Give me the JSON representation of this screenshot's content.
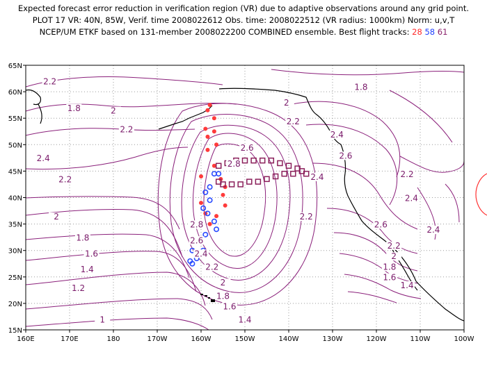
{
  "header": {
    "line1": "Expected forecast error reduction in verification region (VR) due to adaptive observations around any grid point.",
    "line2": "PLOT 17 VR: 40N, 85W, Verif. time 2008022612 Obs. time: 2008022512 (VR radius: 1000km) Norm: u,v,T",
    "line3_prefix": "NCEP/UM ETKF based on 131-member 2008022200 COMBINED ensemble.  Best flight tracks:",
    "track_a": "28",
    "track_b": "58",
    "track_c": "61"
  },
  "colors": {
    "contour": "#8a1f7a",
    "track_28": "#ff3b3b",
    "track_58": "#2a4bff",
    "track_61": "#8a1f5a",
    "vr_circle": "#ff3030"
  },
  "map": {
    "lon_range": [
      160,
      260
    ],
    "lat_range": [
      15,
      65
    ],
    "x_ticks": [
      "160E",
      "170E",
      "180",
      "170W",
      "160W",
      "150W",
      "140W",
      "130W",
      "120W",
      "110W",
      "100W"
    ],
    "y_ticks": [
      "15N",
      "20N",
      "25N",
      "30N",
      "35N",
      "40N",
      "45N",
      "50N",
      "55N",
      "60N",
      "65N"
    ],
    "contour_labels": [
      {
        "v": "2.2",
        "lon": 165.5,
        "lat": 61.5
      },
      {
        "v": "1.8",
        "lon": 171,
        "lat": 56.5
      },
      {
        "v": "2",
        "lon": 180,
        "lat": 56
      },
      {
        "v": "2.2",
        "lon": 183,
        "lat": 52.5
      },
      {
        "v": "2.4",
        "lon": 164,
        "lat": 47
      },
      {
        "v": "2.2",
        "lon": 169,
        "lat": 43
      },
      {
        "v": "2",
        "lon": 167,
        "lat": 36
      },
      {
        "v": "1.8",
        "lon": 173,
        "lat": 32
      },
      {
        "v": "1.6",
        "lon": 175,
        "lat": 29
      },
      {
        "v": "1.4",
        "lon": 174,
        "lat": 26
      },
      {
        "v": "1.2",
        "lon": 172,
        "lat": 22.5
      },
      {
        "v": "1",
        "lon": 177.5,
        "lat": 16.5
      },
      {
        "v": "2.8",
        "lon": 199,
        "lat": 34.5
      },
      {
        "v": "2.6",
        "lon": 199,
        "lat": 31.5
      },
      {
        "v": "2.4",
        "lon": 200,
        "lat": 29
      },
      {
        "v": "2.2",
        "lon": 202.5,
        "lat": 26.5
      },
      {
        "v": "2",
        "lon": 205,
        "lat": 23.5
      },
      {
        "v": "1.8",
        "lon": 205,
        "lat": 21
      },
      {
        "v": "1.6",
        "lon": 206.5,
        "lat": 19
      },
      {
        "v": "1.4",
        "lon": 210,
        "lat": 16.5
      },
      {
        "v": "2.8",
        "lon": 207.5,
        "lat": 46
      },
      {
        "v": "2.6",
        "lon": 210.5,
        "lat": 49
      },
      {
        "v": "2.4",
        "lon": 226.5,
        "lat": 43.5
      },
      {
        "v": "2.2",
        "lon": 224,
        "lat": 36
      },
      {
        "v": "2.2",
        "lon": 221,
        "lat": 54
      },
      {
        "v": "2",
        "lon": 219.5,
        "lat": 57.5
      },
      {
        "v": "2.4",
        "lon": 231,
        "lat": 51.5
      },
      {
        "v": "2.6",
        "lon": 233,
        "lat": 47.5
      },
      {
        "v": "1.8",
        "lon": 236.5,
        "lat": 60.5
      },
      {
        "v": "2.2",
        "lon": 247,
        "lat": 44
      },
      {
        "v": "2.4",
        "lon": 248,
        "lat": 39.5
      },
      {
        "v": "2.6",
        "lon": 241,
        "lat": 34.5
      },
      {
        "v": "2.4",
        "lon": 253,
        "lat": 33.5
      },
      {
        "v": "2.2",
        "lon": 244,
        "lat": 30.5
      },
      {
        "v": "2",
        "lon": 244,
        "lat": 28.5
      },
      {
        "v": "1.8",
        "lon": 243,
        "lat": 26.5
      },
      {
        "v": "1.6",
        "lon": 243,
        "lat": 24.5
      },
      {
        "v": "1.4",
        "lon": 247,
        "lat": 23
      }
    ],
    "track_28": [
      [
        201.5,
        56.5
      ],
      [
        202,
        57.5
      ],
      [
        203,
        55
      ],
      [
        201,
        53
      ],
      [
        203,
        52.5
      ],
      [
        201.5,
        51.5
      ],
      [
        201.5,
        49
      ],
      [
        203.5,
        50
      ],
      [
        203,
        46
      ],
      [
        200,
        44
      ],
      [
        204.5,
        43.5
      ],
      [
        205.5,
        42
      ],
      [
        205,
        40.5
      ],
      [
        205.5,
        38.5
      ],
      [
        200,
        39
      ],
      [
        201,
        37
      ],
      [
        203.5,
        36.5
      ],
      [
        202,
        35
      ]
    ],
    "track_58": [
      [
        203,
        44.5
      ],
      [
        204,
        44.5
      ],
      [
        202,
        42
      ],
      [
        201,
        41
      ],
      [
        202,
        39.5
      ],
      [
        200.5,
        38
      ],
      [
        201.5,
        37
      ],
      [
        203,
        35.5
      ],
      [
        200,
        35
      ],
      [
        203.5,
        34
      ],
      [
        201,
        33
      ],
      [
        199.5,
        32
      ],
      [
        200.5,
        30
      ],
      [
        198,
        30
      ],
      [
        199,
        28.5
      ],
      [
        197.5,
        28
      ],
      [
        198,
        27.5
      ]
    ],
    "track_61": [
      [
        204,
        46
      ],
      [
        206,
        46.5
      ],
      [
        208,
        47
      ],
      [
        210,
        47
      ],
      [
        212,
        47
      ],
      [
        214,
        47
      ],
      [
        216,
        47
      ],
      [
        218,
        46.5
      ],
      [
        220,
        46
      ],
      [
        222,
        45.5
      ],
      [
        223,
        45
      ],
      [
        224,
        44.5
      ],
      [
        221,
        44.5
      ],
      [
        219,
        44.5
      ],
      [
        217,
        44
      ],
      [
        215,
        43.5
      ],
      [
        213,
        43
      ],
      [
        211,
        43
      ],
      [
        209,
        42.5
      ],
      [
        207,
        42.5
      ],
      [
        205,
        42.5
      ],
      [
        204,
        43
      ]
    ]
  }
}
